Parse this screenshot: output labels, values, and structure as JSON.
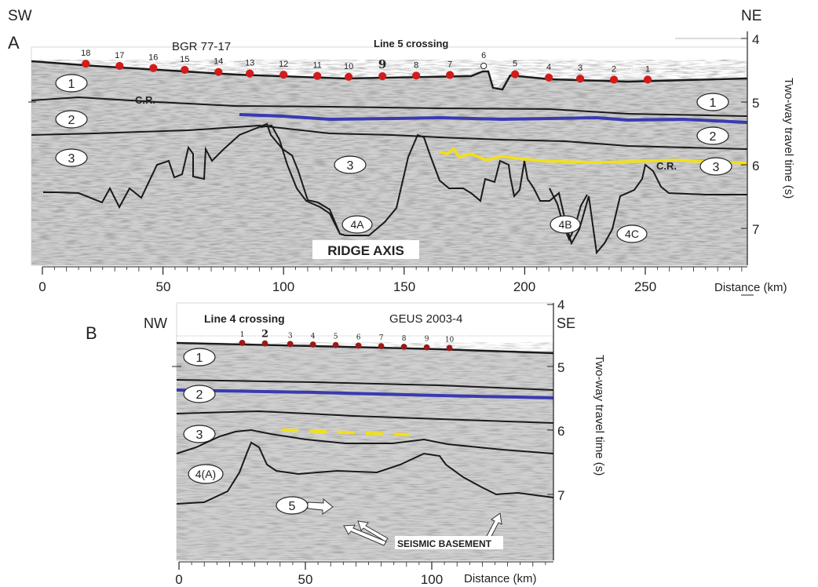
{
  "panel_a": {
    "letter": "A",
    "dir_left": "SW",
    "dir_right": "NE",
    "line_name": "BGR 77-17",
    "crossing_label": "Line 5 crossing",
    "cr_label_left": "C.R.",
    "cr_label_right": "C.R.",
    "ridge_label": "RIDGE AXIS",
    "y_axis_label": "Two-way travel time (s)",
    "x_axis_label": "Distance (km)",
    "x_ticks": [
      "0",
      "50",
      "100",
      "150",
      "200",
      "250"
    ],
    "y_ticks": [
      "4",
      "5",
      "6",
      "7"
    ],
    "stations": [
      {
        "label": "18",
        "km": 18
      },
      {
        "label": "17",
        "km": 32
      },
      {
        "label": "16",
        "km": 46
      },
      {
        "label": "15",
        "km": 59
      },
      {
        "label": "14",
        "km": 73
      },
      {
        "label": "13",
        "km": 86
      },
      {
        "label": "12",
        "km": 100
      },
      {
        "label": "11",
        "km": 114
      },
      {
        "label": "10",
        "km": 127
      },
      {
        "label": "9",
        "km": 141
      },
      {
        "label": "8",
        "km": 155
      },
      {
        "label": "7",
        "km": 169
      },
      {
        "label": "6",
        "km": 183
      },
      {
        "label": "5",
        "km": 196
      },
      {
        "label": "4",
        "km": 210
      },
      {
        "label": "3",
        "km": 223
      },
      {
        "label": "2",
        "km": 237
      },
      {
        "label": "1",
        "km": 251
      }
    ],
    "units": [
      "1",
      "1",
      "2",
      "2",
      "3",
      "3",
      "3",
      "4A",
      "4B",
      "4C"
    ]
  },
  "panel_b": {
    "letter": "B",
    "dir_left": "NW",
    "dir_right": "SE",
    "line_name": "GEUS 2003-4",
    "crossing_label": "Line 4 crossing",
    "y_axis_label": "Two-way travel time (s)",
    "x_axis_label": "Distance (km)",
    "basement_label": "SEISMIC BASEMENT",
    "x_ticks": [
      "0",
      "50",
      "100"
    ],
    "y_ticks": [
      "4",
      "5",
      "6",
      "7"
    ],
    "stations": [
      {
        "label": "1",
        "km": 25
      },
      {
        "label": "2",
        "km": 34
      },
      {
        "label": "3",
        "km": 44
      },
      {
        "label": "4",
        "km": 53
      },
      {
        "label": "5",
        "km": 62
      },
      {
        "label": "6",
        "km": 71
      },
      {
        "label": "7",
        "km": 80
      },
      {
        "label": "8",
        "km": 89
      },
      {
        "label": "9",
        "km": 98
      },
      {
        "label": "10",
        "km": 107
      }
    ],
    "units": [
      "1",
      "2",
      "3",
      "4(A)",
      "5"
    ]
  },
  "colors": {
    "station_dot": "#d21c1c",
    "station_dot_b": "#9a1a1a",
    "horizon_blue": "#3a3ab0",
    "horizon_yellow": "#f2e018",
    "interpretation_line": "#1a1a1a",
    "seismic_light": "#d6d6d6",
    "seismic_dark": "#8a8a8a"
  }
}
